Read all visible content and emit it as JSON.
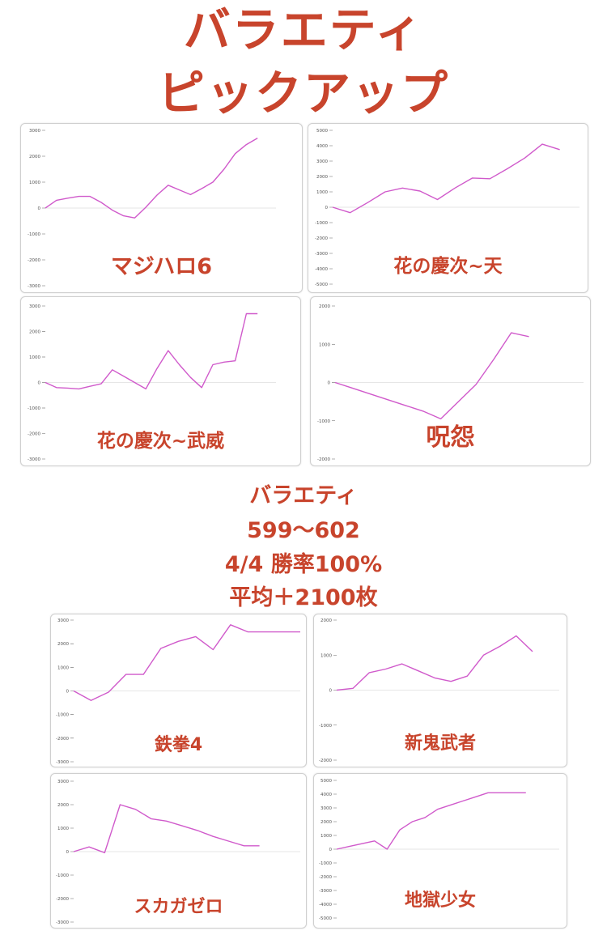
{
  "header": {
    "line1": "バラエティ",
    "line2": "ピックアップ"
  },
  "summary": {
    "line1": "バラエティ",
    "line2": "599〜602",
    "line3": "4/4 勝率100%",
    "line4": "平均＋2100枚"
  },
  "colors": {
    "accent": "#c8442c",
    "line": "#d05acb",
    "zero": "#e6e6e6"
  },
  "chart_data": [
    {
      "type": "line",
      "label": "マジハロ6",
      "ylim": [
        -3000,
        3000
      ],
      "yticks": [
        "3000",
        "2000",
        "1000",
        "0",
        "-1000",
        "-2000",
        "-3000"
      ],
      "x": [
        0,
        1,
        2,
        3,
        4,
        5,
        6,
        7,
        8,
        9,
        10,
        11,
        12,
        13,
        14,
        15,
        16,
        17,
        18,
        19
      ],
      "values": [
        0,
        300,
        380,
        450,
        450,
        220,
        -80,
        -300,
        -380,
        30,
        500,
        880,
        700,
        520,
        750,
        1000,
        1500,
        2100,
        2450,
        2700
      ]
    },
    {
      "type": "line",
      "label": "花の慶次~天",
      "ylim": [
        -5000,
        5000
      ],
      "yticks": [
        "5000",
        "4000",
        "3000",
        "2000",
        "1000",
        "0",
        "-1000",
        "-2000",
        "-3000",
        "-4000",
        "-5000"
      ],
      "x": [
        0,
        1,
        2,
        3,
        4,
        5,
        6,
        7,
        8,
        9,
        10,
        11,
        12,
        13
      ],
      "values": [
        0,
        -350,
        300,
        1000,
        1250,
        1050,
        500,
        1250,
        1900,
        1850,
        2500,
        3200,
        4100,
        3750
      ]
    },
    {
      "type": "line",
      "label": "花の慶次~武威",
      "ylim": [
        -3000,
        3000
      ],
      "yticks": [
        "3000",
        "2000",
        "1000",
        "0",
        "-1000",
        "-2000",
        "-3000"
      ],
      "x": [
        0,
        1,
        2,
        3,
        4,
        5,
        6,
        7,
        8,
        9,
        10,
        11,
        12,
        13,
        14,
        15,
        16,
        17,
        18,
        19
      ],
      "values": [
        0,
        -200,
        -220,
        -250,
        -150,
        -50,
        500,
        250,
        0,
        -250,
        550,
        1250,
        700,
        200,
        -200,
        700,
        800,
        850,
        2700,
        2700
      ]
    },
    {
      "type": "line",
      "label": "呪怨",
      "ylim": [
        -2000,
        2000
      ],
      "yticks": [
        "2000",
        "1000",
        "0",
        "-1000",
        "-2000"
      ],
      "x": [
        0,
        1,
        2,
        3,
        4,
        5,
        6,
        7,
        8,
        9,
        10,
        11
      ],
      "values": [
        0,
        -150,
        -300,
        -450,
        -600,
        -750,
        -950,
        -500,
        -50,
        600,
        1300,
        1200
      ]
    },
    {
      "type": "line",
      "label": "鉄拳4",
      "ylim": [
        -3000,
        3000
      ],
      "yticks": [
        "3000",
        "2000",
        "1000",
        "0",
        "-1000",
        "-2000",
        "-3000"
      ],
      "x": [
        0,
        1,
        2,
        3,
        4,
        5,
        6,
        7,
        8,
        9,
        10,
        11,
        12,
        13
      ],
      "values": [
        0,
        -400,
        -50,
        700,
        700,
        1800,
        2100,
        2300,
        1750,
        2800,
        2500,
        2500,
        2500,
        2500
      ]
    },
    {
      "type": "line",
      "label": "新鬼武者",
      "ylim": [
        -2000,
        2000
      ],
      "yticks": [
        "2000",
        "1000",
        "0",
        "-1000",
        "-2000"
      ],
      "x": [
        0,
        1,
        2,
        3,
        4,
        5,
        6,
        7,
        8,
        9,
        10,
        11,
        12
      ],
      "values": [
        0,
        50,
        500,
        600,
        750,
        550,
        350,
        250,
        400,
        1000,
        1250,
        1550,
        1100
      ]
    },
    {
      "type": "line",
      "label": "スカガゼロ",
      "ylim": [
        -3000,
        3000
      ],
      "yticks": [
        "3000",
        "2000",
        "1000",
        "0",
        "-1000",
        "-2000",
        "-3000"
      ],
      "x": [
        0,
        1,
        2,
        3,
        4,
        5,
        6,
        7,
        8,
        9,
        10,
        11,
        12
      ],
      "values": [
        0,
        200,
        -50,
        2000,
        1800,
        1400,
        1300,
        1100,
        900,
        650,
        450,
        250,
        250
      ]
    },
    {
      "type": "line",
      "label": "地獄少女",
      "ylim": [
        -5000,
        5000
      ],
      "yticks": [
        "5000",
        "4000",
        "3000",
        "2000",
        "1000",
        "0",
        "-1000",
        "-2000",
        "-3000",
        "-4000",
        "-5000"
      ],
      "x": [
        0,
        1,
        2,
        3,
        4,
        5,
        6,
        7,
        8,
        9,
        10,
        11,
        12,
        13,
        14,
        15
      ],
      "values": [
        0,
        200,
        400,
        600,
        0,
        1400,
        2000,
        2300,
        2900,
        3200,
        3500,
        3800,
        4100,
        4100,
        4100,
        4100
      ]
    }
  ]
}
